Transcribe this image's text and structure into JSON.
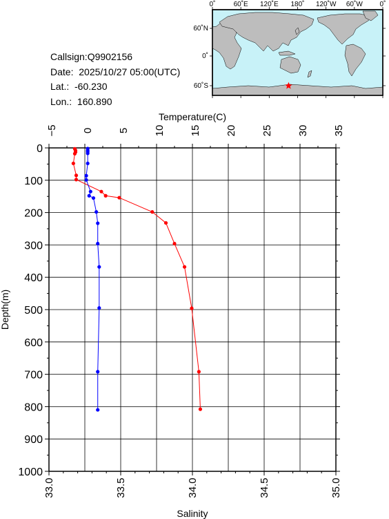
{
  "station": {
    "callsign": "Callsign:Q9902156",
    "date": "Date:  2025/10/27 05:00(UTC)",
    "lat": "Lat.:  -60.230",
    "lon": "Lon.:  160.890"
  },
  "map": {
    "lon_labels": [
      "0˚",
      "60˚E",
      "120˚E",
      "180˚",
      "120˚W",
      "60˚W",
      "0˚"
    ],
    "lat_labels": [
      "60˚N",
      "0˚",
      "60˚S"
    ],
    "ocean_color": "#c8f2f8",
    "land_color": "#bdbdbd",
    "marker_color": "#ff0000",
    "marker_icon": "star-icon"
  },
  "chart_data": {
    "type": "line",
    "ylabel": "Depth(m)",
    "ylim": [
      0,
      1000
    ],
    "y_inverted": true,
    "y_ticks": [
      0,
      100,
      200,
      300,
      400,
      500,
      600,
      700,
      800,
      900,
      1000
    ],
    "grid": true,
    "temperature_axis": {
      "label": "Temperature(C)",
      "position": "top",
      "range": [
        -5,
        35
      ],
      "ticks": [
        "−5",
        "0",
        "5",
        "10",
        "15",
        "20",
        "25",
        "30",
        "35"
      ]
    },
    "salinity_axis": {
      "label": "Salinity",
      "position": "bottom",
      "range": [
        33.0,
        35.0
      ],
      "ticks": [
        "33.0",
        "33.5",
        "34.0",
        "34.5",
        "35.0"
      ]
    },
    "series": [
      {
        "axis": "temperature",
        "color": "#ff0000",
        "points": [
          [
            -1.4,
            3
          ],
          [
            -1.3,
            8
          ],
          [
            -1.3,
            13
          ],
          [
            -1.4,
            18
          ],
          [
            -1.6,
            48
          ],
          [
            -1.2,
            85
          ],
          [
            -1.2,
            98
          ],
          [
            2.3,
            135
          ],
          [
            2.9,
            148
          ],
          [
            4.8,
            154
          ],
          [
            9.4,
            198
          ],
          [
            11.3,
            232
          ],
          [
            12.5,
            296
          ],
          [
            13.9,
            368
          ],
          [
            14.9,
            496
          ],
          [
            15.9,
            692
          ],
          [
            16.1,
            808
          ]
        ]
      },
      {
        "axis": "salinity",
        "color": "#0000ff",
        "points": [
          [
            33.27,
            2
          ],
          [
            33.27,
            8
          ],
          [
            33.27,
            12
          ],
          [
            33.27,
            17
          ],
          [
            33.27,
            48
          ],
          [
            33.26,
            86
          ],
          [
            33.26,
            99
          ],
          [
            33.29,
            135
          ],
          [
            33.28,
            148
          ],
          [
            33.31,
            155
          ],
          [
            33.33,
            198
          ],
          [
            33.34,
            233
          ],
          [
            33.34,
            296
          ],
          [
            33.35,
            368
          ],
          [
            33.35,
            495
          ],
          [
            33.34,
            692
          ],
          [
            33.34,
            810
          ]
        ]
      }
    ]
  }
}
